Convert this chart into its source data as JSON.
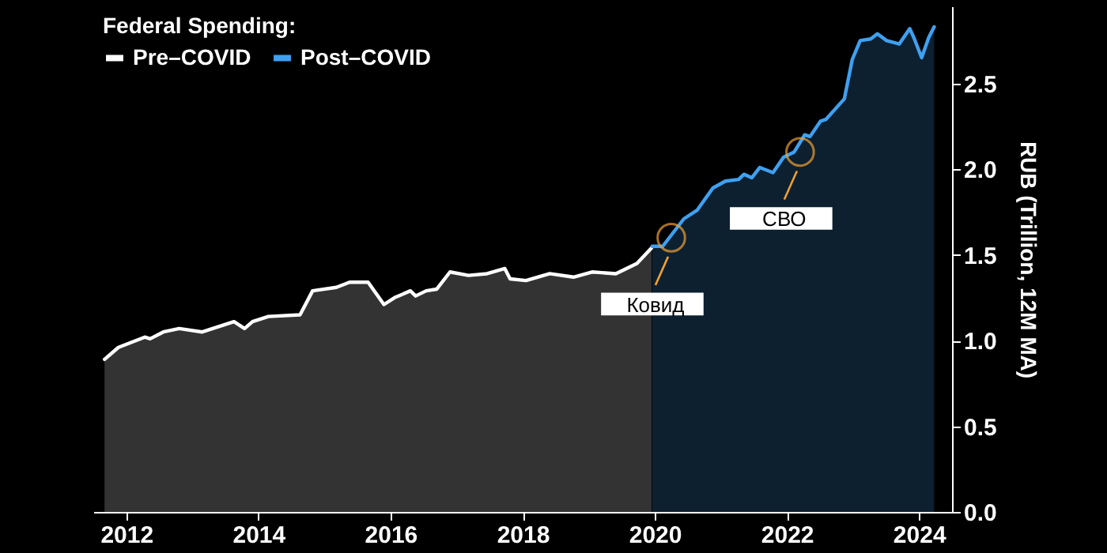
{
  "chart_data": {
    "type": "area",
    "ylabel": "RUB (Trillion, 12M MA)",
    "legend_title": "Federal Spending:",
    "legend": "top left",
    "xlim": [
      2011.5,
      2024.5
    ],
    "xticks": [
      2012,
      2014,
      2016,
      2018,
      2020,
      2022,
      2024
    ],
    "ylim": [
      0,
      2.95
    ],
    "yticks": [
      {
        "value": 0,
        "label": "0.0"
      },
      {
        "value": 0.5,
        "label": "0.5"
      },
      {
        "value": 1,
        "label": "1.0"
      },
      {
        "value": 1.5,
        "label": "1.5"
      },
      {
        "value": 2,
        "label": "2.0"
      },
      {
        "value": 2.5,
        "label": "2.5"
      }
    ],
    "series": [
      {
        "name": "Pre–COVID",
        "color": "#ffffff",
        "x": [
          2011.67,
          2011.88,
          2012.28,
          2012.36,
          2012.56,
          2012.8,
          2013.15,
          2013.63,
          2013.79,
          2013.91,
          2014.15,
          2014.63,
          2014.82,
          2015.18,
          2015.38,
          2015.66,
          2015.9,
          2016.06,
          2016.3,
          2016.38,
          2016.54,
          2016.7,
          2016.9,
          2017.18,
          2017.46,
          2017.73,
          2017.81,
          2018.05,
          2018.41,
          2018.77,
          2019.05,
          2019.41,
          2019.73,
          2019.95
        ],
        "values": [
          0.89,
          0.96,
          1.02,
          1.01,
          1.05,
          1.07,
          1.05,
          1.11,
          1.07,
          1.11,
          1.14,
          1.15,
          1.29,
          1.31,
          1.34,
          1.34,
          1.21,
          1.25,
          1.29,
          1.26,
          1.29,
          1.3,
          1.4,
          1.38,
          1.39,
          1.42,
          1.36,
          1.35,
          1.39,
          1.37,
          1.4,
          1.39,
          1.45,
          1.54
        ]
      },
      {
        "name": "Post–COVID",
        "color": "#3fa0f0",
        "x": [
          2019.96,
          2020.12,
          2020.44,
          2020.64,
          2020.88,
          2021.07,
          2021.27,
          2021.35,
          2021.47,
          2021.59,
          2021.79,
          2021.95,
          2022.11,
          2022.27,
          2022.35,
          2022.51,
          2022.59,
          2022.87,
          2022.99,
          2023.11,
          2023.27,
          2023.37,
          2023.51,
          2023.7,
          2023.86,
          2023.93,
          2024.04,
          2024.15,
          2024.23
        ],
        "values": [
          1.55,
          1.55,
          1.71,
          1.76,
          1.89,
          1.93,
          1.94,
          1.97,
          1.95,
          2.01,
          1.98,
          2.07,
          2.1,
          2.2,
          2.19,
          2.28,
          2.29,
          2.41,
          2.64,
          2.75,
          2.76,
          2.79,
          2.75,
          2.73,
          2.82,
          2.76,
          2.65,
          2.77,
          2.83
        ]
      }
    ],
    "annotations": [
      {
        "text": "Ковид",
        "x": 2020.25,
        "y": 1.6
      },
      {
        "text": "СВО",
        "x": 2022.2,
        "y": 2.1
      }
    ]
  }
}
